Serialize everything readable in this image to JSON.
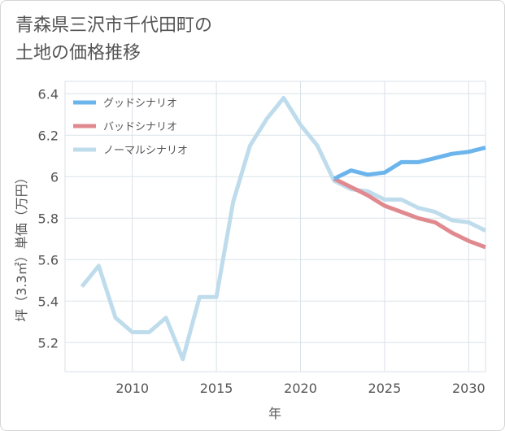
{
  "title": {
    "line1": "青森県三沢市千代田町の",
    "line2": "土地の価格推移"
  },
  "colors": {
    "good": "#6cb4ec",
    "bad": "#e08a8f",
    "normal": "#bfdcec",
    "grid": "#d9e2e8",
    "text": "#555555"
  },
  "chart_data": {
    "type": "line",
    "xlabel": "年",
    "ylabel": "坪（3.3㎡）単価（万円）",
    "xlim": [
      2006,
      2031
    ],
    "ylim": [
      5.06,
      6.46
    ],
    "xticks": [
      2010,
      2015,
      2020,
      2025,
      2030
    ],
    "yticks": [
      5.2,
      5.4,
      5.6,
      5.8,
      6,
      6.2,
      6.4
    ],
    "xtick_labels": [
      "2010",
      "2015",
      "2020",
      "2025",
      "2030"
    ],
    "ytick_labels": [
      "5.2",
      "5.4",
      "5.6",
      "5.8",
      "6",
      "6.2",
      "6.4"
    ],
    "grid": true,
    "legend_position": "top-left",
    "series": [
      {
        "name": "グッドシナリオ",
        "color": "#6cb4ec",
        "x": [
          2022,
          2023,
          2024,
          2025,
          2026,
          2027,
          2028,
          2029,
          2030,
          2031
        ],
        "y": [
          5.99,
          6.03,
          6.01,
          6.02,
          6.07,
          6.07,
          6.09,
          6.11,
          6.12,
          6.14
        ]
      },
      {
        "name": "バッドシナリオ",
        "color": "#e08a8f",
        "x": [
          2022,
          2023,
          2024,
          2025,
          2026,
          2027,
          2028,
          2029,
          2030,
          2031
        ],
        "y": [
          5.99,
          5.95,
          5.91,
          5.86,
          5.83,
          5.8,
          5.78,
          5.73,
          5.69,
          5.66
        ]
      },
      {
        "name": "ノーマルシナリオ",
        "color": "#bfdcec",
        "x": [
          2007,
          2008,
          2009,
          2010,
          2011,
          2012,
          2013,
          2014,
          2015,
          2016,
          2017,
          2018,
          2019,
          2020,
          2021,
          2022,
          2023,
          2024,
          2025,
          2026,
          2027,
          2028,
          2029,
          2030,
          2031
        ],
        "y": [
          5.47,
          5.57,
          5.32,
          5.25,
          5.25,
          5.32,
          5.12,
          5.42,
          5.42,
          5.88,
          6.15,
          6.28,
          6.38,
          6.25,
          6.15,
          5.98,
          5.94,
          5.93,
          5.89,
          5.89,
          5.85,
          5.83,
          5.79,
          5.78,
          5.74
        ]
      }
    ]
  }
}
